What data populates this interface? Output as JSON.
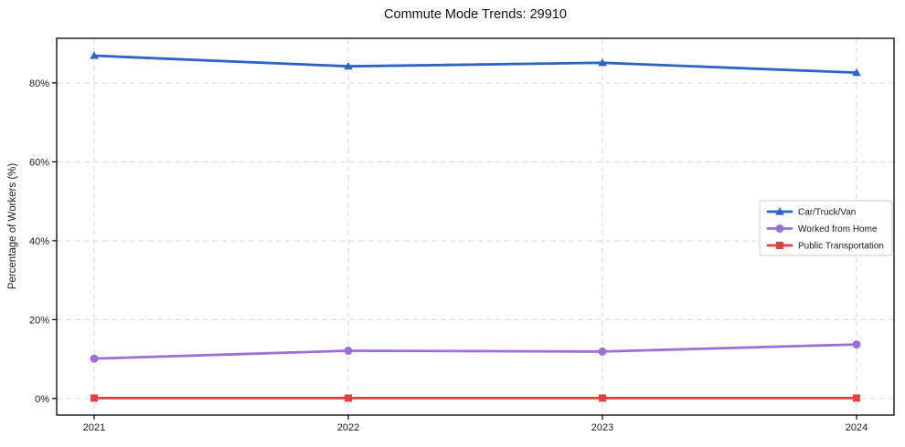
{
  "title": "Commute Mode Trends: 29910",
  "colors": {
    "background": "#ffffff",
    "axis": "#000000",
    "grid": "#d9d9d9",
    "tick_label": "#1a1a1a",
    "legend_border": "#cccccc",
    "series_blue": "#2d64c4",
    "series_purple": "#9c70d4",
    "series_red": "#e24141"
  },
  "chart_data": {
    "type": "line",
    "title": "Commute Mode Trends: 29910",
    "xlabel": "",
    "ylabel": "Percentage of Workers (%)",
    "x": [
      2021,
      2022,
      2023,
      2024
    ],
    "xtick_labels": [
      "2021",
      "2022",
      "2023",
      "2024"
    ],
    "yticks": [
      0,
      20,
      40,
      60,
      80
    ],
    "ytick_labels": [
      "0%",
      "20%",
      "40%",
      "60%",
      "80%"
    ],
    "ylim": [
      -4.2,
      91.3
    ],
    "grid": true,
    "grid_style": "dashed",
    "legend_position": "right-middle",
    "series": [
      {
        "name": "Car/Truck/Van",
        "values": [
          86.9,
          84.2,
          85.1,
          82.6
        ],
        "color": "#2d64c4",
        "marker": "triangle"
      },
      {
        "name": "Worked from Home",
        "values": [
          10.1,
          12.1,
          11.9,
          13.7
        ],
        "color": "#9c70d4",
        "marker": "circle"
      },
      {
        "name": "Public Transportation",
        "values": [
          0.1,
          0.1,
          0.1,
          0.1
        ],
        "color": "#e24141",
        "marker": "square"
      }
    ]
  }
}
